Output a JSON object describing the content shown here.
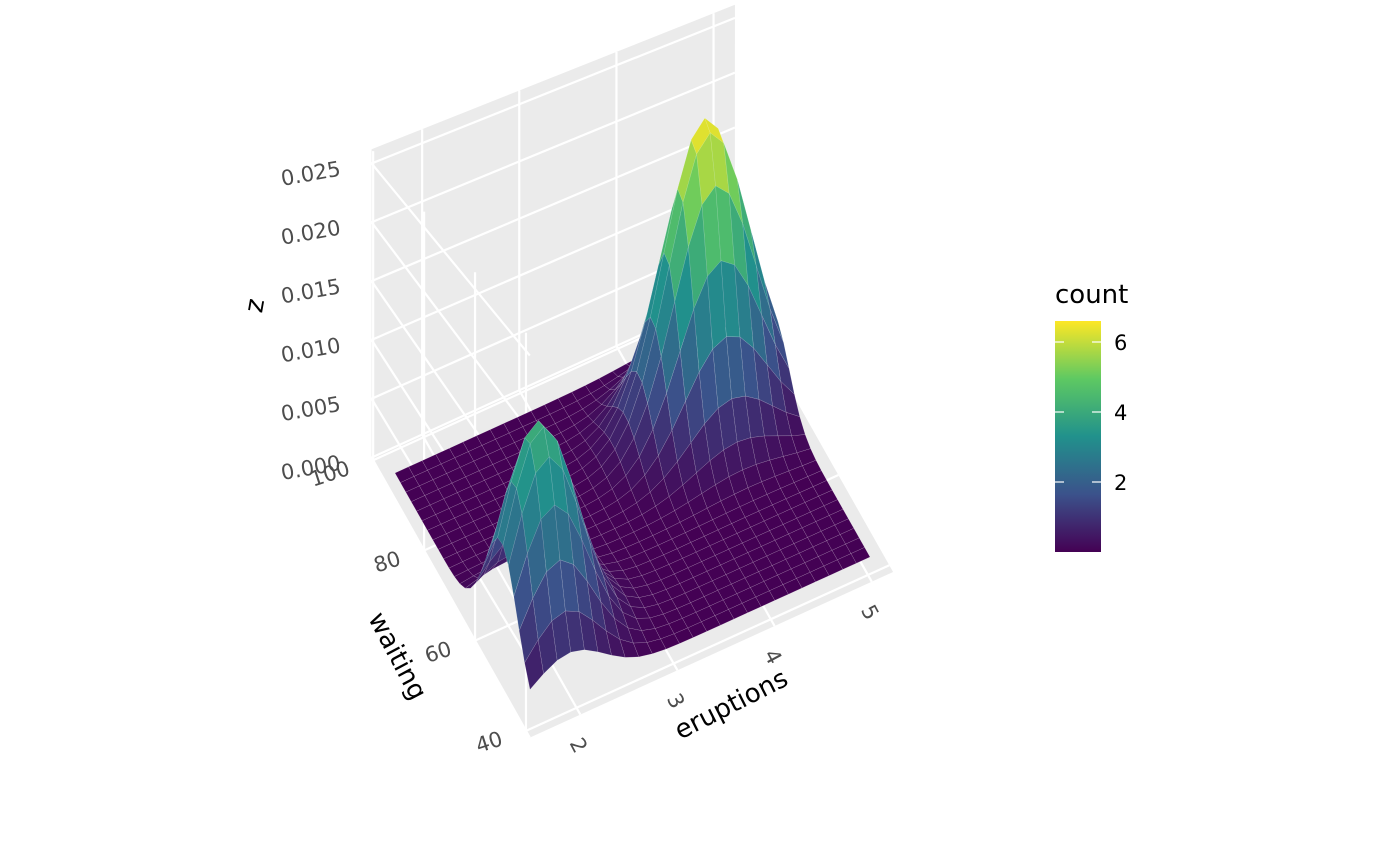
{
  "chart_data": {
    "type": "surface3d",
    "title": "",
    "xlabel": "eruptions",
    "ylabel": "waiting",
    "zlabel": "z",
    "xlim": [
      1.6,
      5.1
    ],
    "ylim": [
      43,
      96
    ],
    "zlim": [
      0,
      0.025
    ],
    "x_ticks": [
      2,
      3,
      4,
      5
    ],
    "x_tick_labels": [
      "2",
      "3",
      "4",
      "5"
    ],
    "y_ticks": [
      40,
      60,
      80,
      100
    ],
    "y_tick_labels": [
      "40",
      "60",
      "80",
      "100"
    ],
    "z_ticks": [
      0,
      0.005,
      0.01,
      0.015,
      0.02,
      0.025
    ],
    "z_tick_labels": [
      "0.000",
      "0.005",
      "0.010",
      "0.015",
      "0.020",
      "0.025"
    ],
    "grid": true,
    "legend": {
      "title": "count",
      "placement": "right",
      "range": [
        0,
        6.6
      ],
      "ticks": [
        2,
        4,
        6
      ],
      "tick_labels": [
        "2",
        "4",
        "6"
      ],
      "colors": [
        "#440154",
        "#3b528b",
        "#21918c",
        "#5ec962",
        "#fde725"
      ]
    },
    "peaks": [
      {
        "eruptions": 4.4,
        "waiting": 80.5,
        "z": 0.0245
      },
      {
        "eruptions": 2.0,
        "waiting": 54.5,
        "z": 0.0155
      }
    ]
  }
}
